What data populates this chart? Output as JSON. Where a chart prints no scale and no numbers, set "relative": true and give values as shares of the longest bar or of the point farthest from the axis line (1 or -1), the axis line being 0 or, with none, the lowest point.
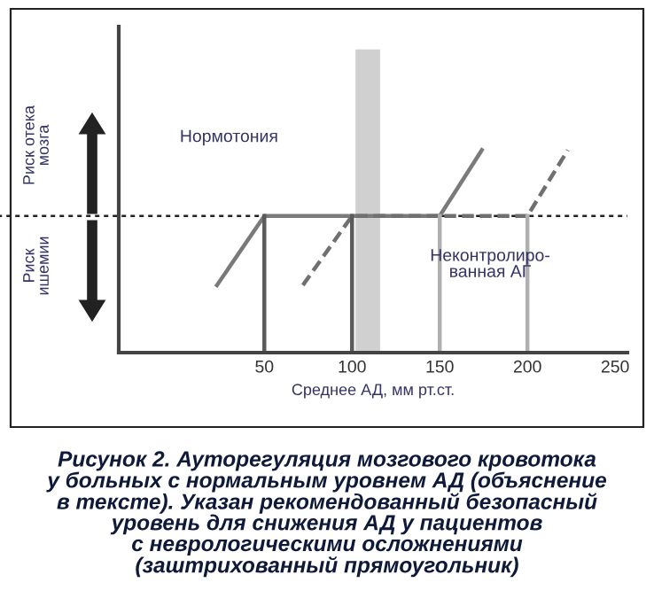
{
  "chart_data": {
    "type": "line",
    "relative": true,
    "xlabel": "Среднее АД, мм рт.ст.",
    "xlim": [
      -33,
      257
    ],
    "xticks": [
      50,
      100,
      150,
      200,
      250
    ],
    "grid": false,
    "legend": false,
    "marker": "none",
    "series": [
      {
        "color": "#7a7a7a",
        "line_style": "solid",
        "x": [
          23,
          50,
          150,
          174
        ],
        "values": [
          0.333,
          0.675,
          0.675,
          1
        ]
      },
      {
        "color": "#707070",
        "line_style": "dashed",
        "x": [
          72,
          100,
          200,
          223
        ],
        "values": [
          0.333,
          0.675,
          0.675,
          1
        ]
      },
      {
        "color": "#5a5a5a",
        "line_style": "solid",
        "x": [
          50,
          50
        ],
        "values": [
          0,
          0.675
        ]
      },
      {
        "color": "#5a5a5a",
        "line_style": "solid",
        "x": [
          100,
          100
        ],
        "values": [
          0,
          0.675
        ]
      },
      {
        "color": "#b0b0b0",
        "line_style": "solid",
        "x": [
          150,
          150
        ],
        "values": [
          0,
          0.675
        ]
      },
      {
        "color": "#b0b0b0",
        "line_style": "solid",
        "x": [
          200,
          200
        ],
        "values": [
          0,
          0.675
        ]
      }
    ],
    "ref_lines": [
      {
        "axis": "y",
        "value": 0.675,
        "color": "#222222",
        "line_style": "dotted"
      }
    ],
    "bands": [
      {
        "axis": "x",
        "from": 102,
        "to": 116,
        "color": "#d0d0d0"
      }
    ],
    "annotations": [
      "Риск отека\nмозга",
      "Риск\nишемии",
      "Рисунок 2. Ауторегуляция мозгового кровотока\nу больных с нормальным уровнем АД (объяснение\nв тексте). Указан рекомендованный безопасный\nуровень для снижения АД у пациентов\nс неврологическими осложнениями\n(заштрихованный прямоугольник)",
      "Нормотония",
      "Неконтролиро-\nванная АГ"
    ]
  }
}
